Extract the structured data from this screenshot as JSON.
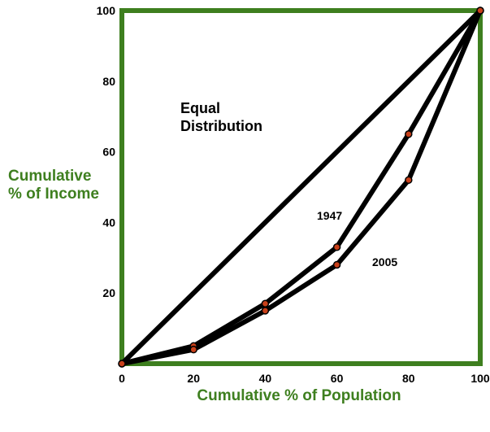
{
  "chart_data": {
    "type": "line",
    "title": "",
    "xlabel": "Cumulative % of Population",
    "ylabel_lines": [
      "Cumulative",
      "% of Income"
    ],
    "xlim": [
      0,
      100
    ],
    "ylim": [
      0,
      100
    ],
    "x_ticks": [
      0,
      20,
      40,
      60,
      80,
      100
    ],
    "y_ticks": [
      20,
      40,
      60,
      80,
      100
    ],
    "grid": false,
    "annotations": {
      "equal_line1": "Equal",
      "equal_line2": "Distribution",
      "curve_1947": "1947",
      "curve_2005": "2005"
    },
    "series": [
      {
        "key": "equal",
        "x": [
          0,
          100
        ],
        "y": [
          0,
          100
        ],
        "markers": false
      },
      {
        "key": "1947",
        "x": [
          0,
          20,
          40,
          60,
          80,
          100
        ],
        "y": [
          0,
          5,
          17,
          33,
          65,
          100
        ],
        "markers": true
      },
      {
        "key": "2005",
        "x": [
          0,
          20,
          40,
          60,
          80,
          100
        ],
        "y": [
          0,
          4,
          15,
          28,
          52,
          100
        ],
        "markers": true
      }
    ],
    "colors": {
      "frame": "#3e7f1f",
      "axis_title": "#3e7f1f",
      "line": "#000000",
      "marker_fill": "#c8401a"
    }
  }
}
